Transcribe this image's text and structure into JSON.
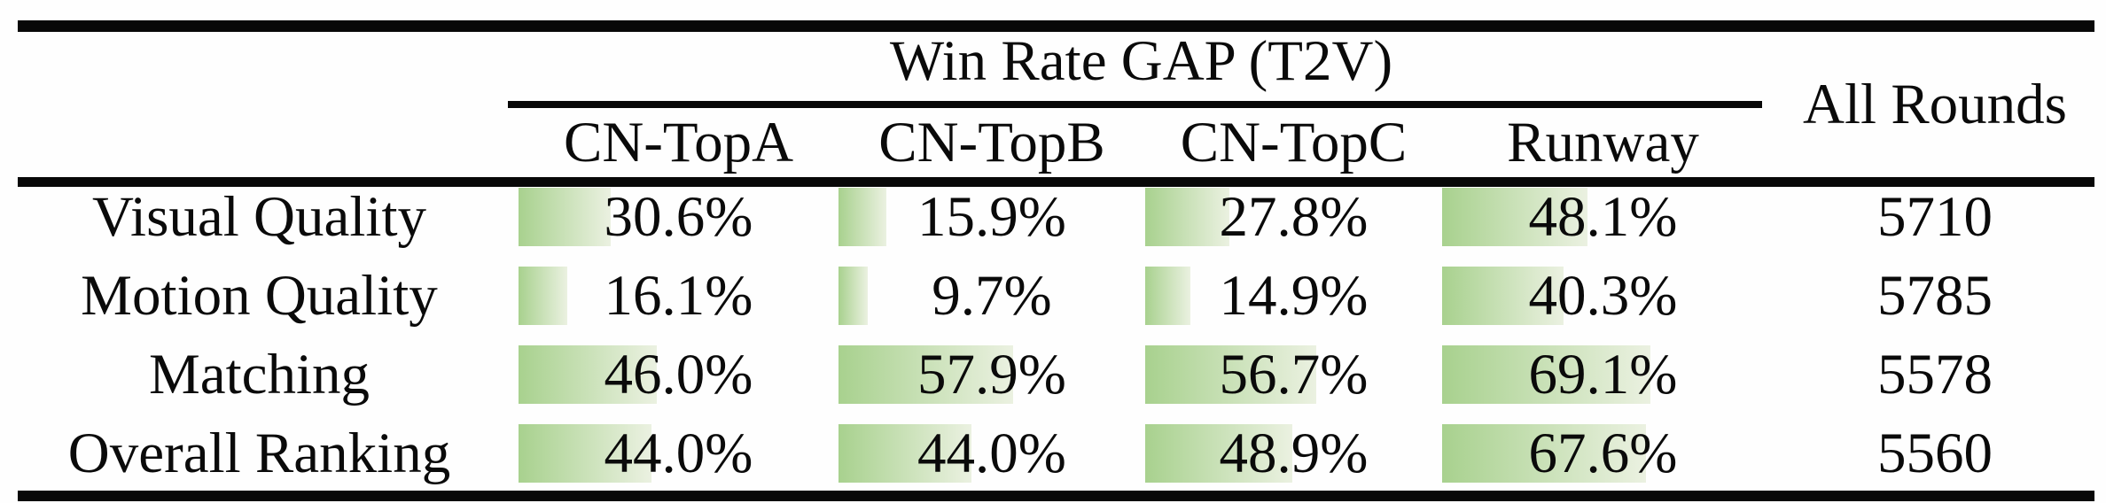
{
  "table": {
    "header": {
      "group_title": "Win Rate GAP (T2V)",
      "all_rounds_label": "All Rounds",
      "columns": [
        "CN-TopA",
        "CN-TopB",
        "CN-TopC",
        "Runway"
      ]
    },
    "rows": [
      {
        "label": "Visual Quality",
        "values": [
          "30.6%",
          "15.9%",
          "27.8%",
          "48.1%"
        ],
        "all_rounds": "5710"
      },
      {
        "label": "Motion Quality",
        "values": [
          "16.1%",
          "9.7%",
          "14.9%",
          "40.3%"
        ],
        "all_rounds": "5785"
      },
      {
        "label": "Matching",
        "values": [
          "46.0%",
          "57.9%",
          "56.7%",
          "69.1%"
        ],
        "all_rounds": "5578"
      },
      {
        "label": "Overall Ranking",
        "values": [
          "44.0%",
          "44.0%",
          "48.9%",
          "67.6%"
        ],
        "all_rounds": "5560"
      }
    ],
    "colors": {
      "bar_gradient_start": "#a8d18e",
      "bar_gradient_end": "#ebf1e1",
      "rule_color": "#080808"
    }
  },
  "chart_data": {
    "type": "bar",
    "title": "Win Rate GAP (T2V)",
    "categories": [
      "Visual Quality",
      "Motion Quality",
      "Matching",
      "Overall Ranking"
    ],
    "series": [
      {
        "name": "CN-TopA",
        "values": [
          30.6,
          16.1,
          46.0,
          44.0
        ]
      },
      {
        "name": "CN-TopB",
        "values": [
          15.9,
          9.7,
          57.9,
          44.0
        ]
      },
      {
        "name": "CN-TopC",
        "values": [
          27.8,
          14.9,
          56.7,
          48.9
        ]
      },
      {
        "name": "Runway",
        "values": [
          48.1,
          40.3,
          69.1,
          67.6
        ]
      },
      {
        "name": "All Rounds",
        "values": [
          5710,
          5785,
          5578,
          5560
        ]
      }
    ],
    "unit": "percent (All Rounds in counts)",
    "xlim": [
      0,
      100
    ]
  }
}
